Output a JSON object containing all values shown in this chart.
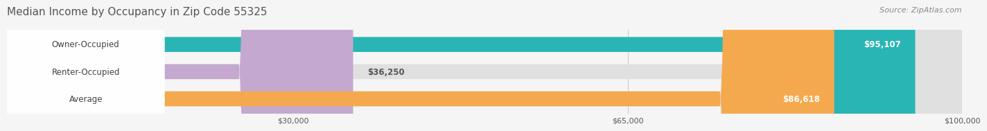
{
  "title": "Median Income by Occupancy in Zip Code 55325",
  "source": "Source: ZipAtlas.com",
  "categories": [
    "Owner-Occupied",
    "Renter-Occupied",
    "Average"
  ],
  "values": [
    95107,
    36250,
    86618
  ],
  "bar_colors": [
    "#2ab5b5",
    "#c4a8d0",
    "#f5a94e"
  ],
  "value_labels": [
    "$95,107",
    "$36,250",
    "$86,618"
  ],
  "xmin": 0,
  "xmax": 100000,
  "xticks": [
    30000,
    65000,
    100000
  ],
  "xtick_labels": [
    "$30,000",
    "$65,000",
    "$100,000"
  ],
  "background_color": "#f5f5f5",
  "bar_bg_color": "#e0e0e0",
  "title_fontsize": 11,
  "source_fontsize": 8,
  "label_fontsize": 8.5,
  "value_fontsize": 8.5
}
